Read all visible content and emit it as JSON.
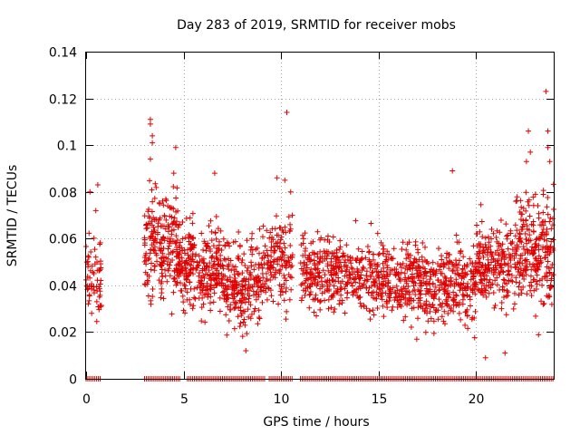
{
  "chart_data": {
    "type": "scatter",
    "title": "Day 283 of 2019, SRMTID for receiver mobs",
    "xlabel": "GPS time / hours",
    "ylabel": "SRMTID / TECUs",
    "xlim": [
      0,
      24
    ],
    "ylim": [
      0,
      0.14
    ],
    "grid": true,
    "marker": "+",
    "series_color": "#e00000",
    "x_ticks": [
      0,
      5,
      10,
      15,
      20
    ],
    "y_ticks": [
      0,
      0.02,
      0.04,
      0.06,
      0.08,
      0.1,
      0.12,
      0.14
    ],
    "x_tick_labels": [
      "0",
      "5",
      "10",
      "15",
      "20"
    ],
    "y_tick_labels": [
      "0",
      "0.02",
      "0.04",
      "0.06",
      "0.08",
      "0.1",
      "0.12",
      "0.14"
    ],
    "coverage_segments": [
      [
        0,
        0.8
      ],
      [
        3.0,
        4.8
      ],
      [
        5.2,
        9.2
      ],
      [
        9.4,
        10.6
      ],
      [
        11.0,
        24.0
      ]
    ],
    "bands": [
      {
        "x": [
          0.0,
          0.8
        ],
        "center": 0.045,
        "spread": 0.015,
        "density": 50
      },
      {
        "x": [
          3.0,
          4.8
        ],
        "center": 0.055,
        "spread": 0.018,
        "density": 80
      },
      {
        "x": [
          4.8,
          7.0
        ],
        "center": 0.048,
        "spread": 0.016,
        "density": 75
      },
      {
        "x": [
          7.0,
          9.0
        ],
        "center": 0.04,
        "spread": 0.016,
        "density": 70
      },
      {
        "x": [
          9.0,
          10.6
        ],
        "center": 0.05,
        "spread": 0.016,
        "density": 60
      },
      {
        "x": [
          11.0,
          14.0
        ],
        "center": 0.045,
        "spread": 0.013,
        "density": 60
      },
      {
        "x": [
          14.0,
          17.0
        ],
        "center": 0.042,
        "spread": 0.013,
        "density": 60
      },
      {
        "x": [
          17.0,
          20.0
        ],
        "center": 0.04,
        "spread": 0.014,
        "density": 65
      },
      {
        "x": [
          20.0,
          22.0
        ],
        "center": 0.048,
        "spread": 0.015,
        "density": 65
      },
      {
        "x": [
          22.0,
          24.0
        ],
        "center": 0.055,
        "spread": 0.02,
        "density": 80
      }
    ],
    "outliers": [
      [
        0.2,
        0.08
      ],
      [
        0.5,
        0.072
      ],
      [
        0.6,
        0.083
      ],
      [
        3.3,
        0.111
      ],
      [
        3.3,
        0.109
      ],
      [
        3.4,
        0.104
      ],
      [
        3.4,
        0.101
      ],
      [
        3.3,
        0.094
      ],
      [
        4.6,
        0.099
      ],
      [
        4.5,
        0.088
      ],
      [
        6.6,
        0.088
      ],
      [
        10.3,
        0.114
      ],
      [
        10.2,
        0.085
      ],
      [
        10.5,
        0.08
      ],
      [
        8.2,
        0.012
      ],
      [
        9.8,
        0.086
      ],
      [
        18.8,
        0.089
      ],
      [
        20.5,
        0.009
      ],
      [
        21.5,
        0.011
      ],
      [
        22.7,
        0.106
      ],
      [
        22.8,
        0.097
      ],
      [
        22.6,
        0.093
      ],
      [
        23.6,
        0.123
      ],
      [
        23.7,
        0.106
      ],
      [
        23.7,
        0.099
      ],
      [
        23.8,
        0.093
      ]
    ]
  }
}
